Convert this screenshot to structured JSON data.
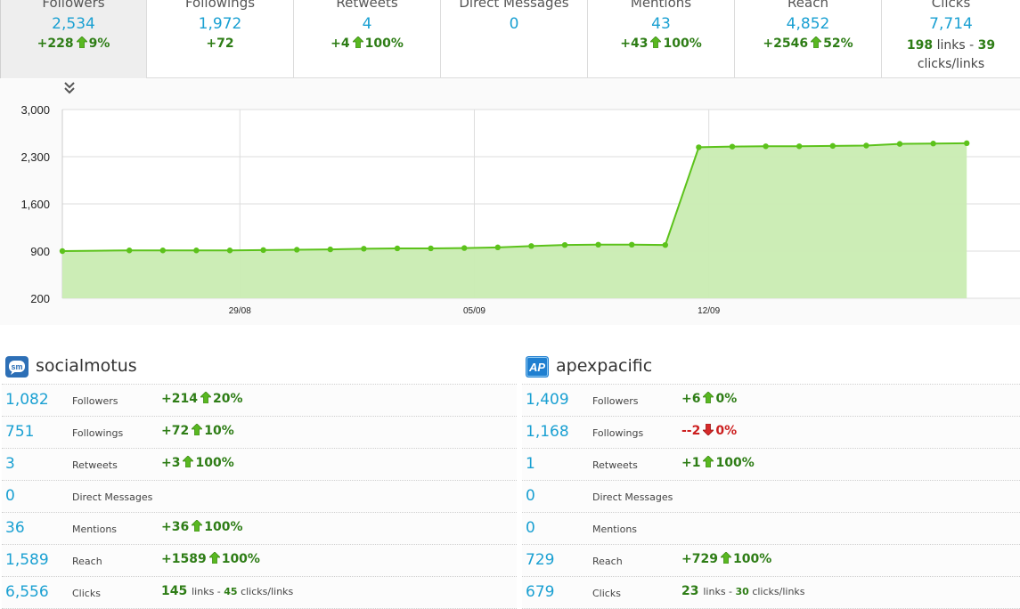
{
  "tabs": [
    {
      "label": "Followers",
      "value": "2,534",
      "change": "+228",
      "pct": "9%",
      "active": true
    },
    {
      "label": "Followings",
      "value": "1,972",
      "change": "+72",
      "pct": ""
    },
    {
      "label": "Retweets",
      "value": "4",
      "change": "+4",
      "pct": "100%"
    },
    {
      "label": "Direct Messages",
      "value": "0",
      "change": "",
      "pct": ""
    },
    {
      "label": "Mentions",
      "value": "43",
      "change": "+43",
      "pct": "100%"
    },
    {
      "label": "Reach",
      "value": "4,852",
      "change": "+2546",
      "pct": "52%"
    },
    {
      "label": "Clicks",
      "value": "7,714",
      "links_count": "198",
      "links_text": "links",
      "clicks_per_link": "39",
      "clicks_text": "clicks/links"
    }
  ],
  "chart_data": {
    "type": "area",
    "color": "#5cc21b",
    "fill": "#c9ecb2",
    "y_ticks": [
      "3,000",
      "2,300",
      "1,600",
      "900",
      "200"
    ],
    "ylim": [
      200,
      3000
    ],
    "x_tick_labels": [
      "29/08",
      "05/09",
      "12/09"
    ],
    "x_tick_index": [
      5.3,
      12.3,
      19.3
    ],
    "values": [
      900,
      905,
      910,
      910,
      910,
      910,
      915,
      920,
      925,
      935,
      940,
      940,
      945,
      955,
      975,
      990,
      995,
      995,
      990,
      2440,
      2450,
      2455,
      2455,
      2460,
      2465,
      2490,
      2495,
      2500
    ],
    "marker_index": [
      0,
      2,
      3,
      4,
      5,
      6,
      7,
      8,
      9,
      10,
      11,
      12,
      13,
      14,
      15,
      16,
      17,
      18,
      19,
      20,
      21,
      22,
      23,
      24,
      25,
      26,
      27
    ],
    "grid": true
  },
  "accounts": [
    {
      "name": "socialmotus",
      "logo_text": "sm",
      "logo_color": "#2d6fb6",
      "rows": [
        {
          "num": "1,082",
          "name": "Followers",
          "change": "+214",
          "pct": "20%",
          "dir": "up"
        },
        {
          "num": "751",
          "name": "Followings",
          "change": "+72",
          "pct": "10%",
          "dir": "up"
        },
        {
          "num": "3",
          "name": "Retweets",
          "change": "+3",
          "pct": "100%",
          "dir": "up"
        },
        {
          "num": "0",
          "name": "Direct Messages",
          "change": "",
          "pct": "",
          "dir": ""
        },
        {
          "num": "36",
          "name": "Mentions",
          "change": "+36",
          "pct": "100%",
          "dir": "up"
        },
        {
          "num": "1,589",
          "name": "Reach",
          "change": "+1589",
          "pct": "100%",
          "dir": "up"
        },
        {
          "num": "6,556",
          "name": "Clicks",
          "links": "145",
          "links_text": "links",
          "sep": " - ",
          "cpl": "45",
          "cpl_text": "clicks/links"
        }
      ]
    },
    {
      "name": "apexpacific",
      "logo_text": "AP",
      "logo_color": "#1f7fd0",
      "rows": [
        {
          "num": "1,409",
          "name": "Followers",
          "change": "+6",
          "pct": "0%",
          "dir": "up"
        },
        {
          "num": "1,168",
          "name": "Followings",
          "change": "--2",
          "pct": "0%",
          "dir": "down"
        },
        {
          "num": "1",
          "name": "Retweets",
          "change": "+1",
          "pct": "100%",
          "dir": "up"
        },
        {
          "num": "0",
          "name": "Direct Messages",
          "change": "",
          "pct": "",
          "dir": ""
        },
        {
          "num": "0",
          "name": "Mentions",
          "change": "",
          "pct": "",
          "dir": ""
        },
        {
          "num": "729",
          "name": "Reach",
          "change": "+729",
          "pct": "100%",
          "dir": "up"
        },
        {
          "num": "679",
          "name": "Clicks",
          "links": "23",
          "links_text": "links",
          "sep": " - ",
          "cpl": "30",
          "cpl_text": "clicks/links"
        }
      ]
    }
  ]
}
